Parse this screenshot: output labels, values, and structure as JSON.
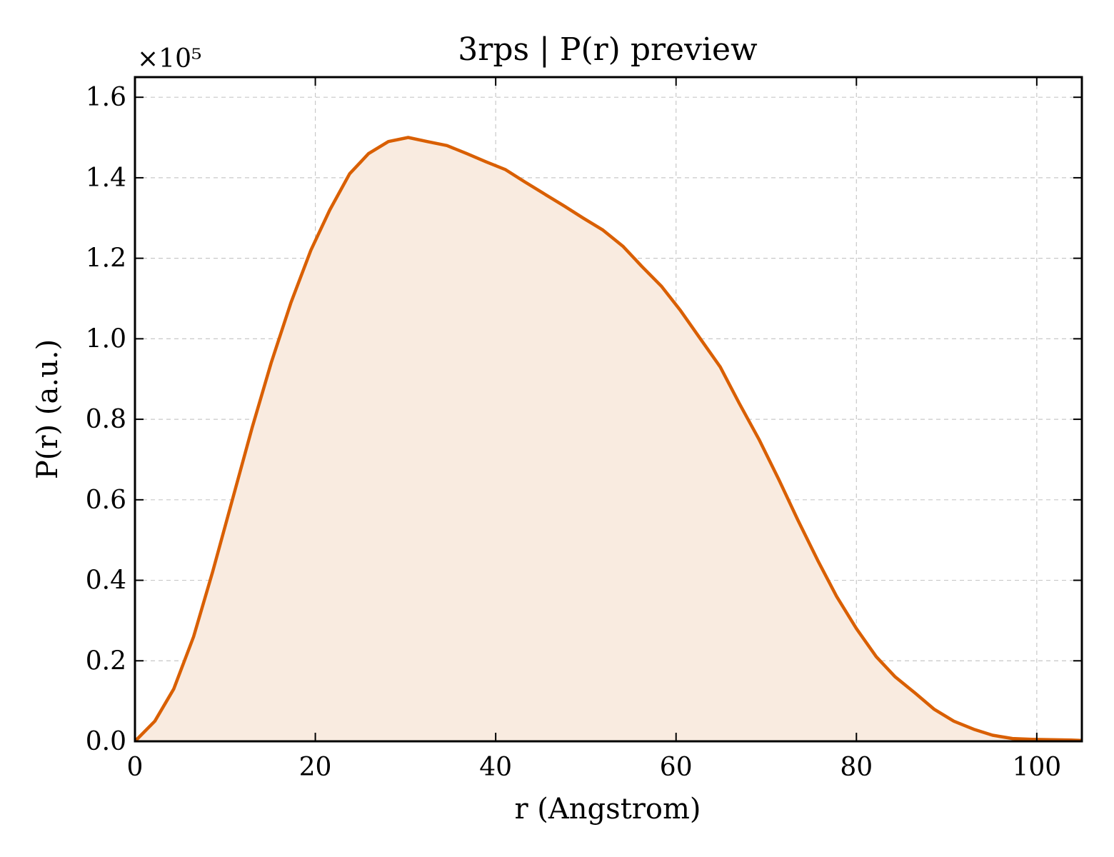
{
  "chart_data": {
    "type": "area",
    "title": "3rps | P(r) preview",
    "xlabel": "r (Angstrom)",
    "ylabel": "P(r) (a.u.)",
    "y_multiplier": "×10⁵",
    "xlim": [
      0,
      105
    ],
    "ylim": [
      0,
      1.65
    ],
    "x_ticks": [
      "0",
      "20",
      "40",
      "60",
      "80",
      "100"
    ],
    "x_tick_values": [
      0,
      20,
      40,
      60,
      80,
      100
    ],
    "y_ticks": [
      "0.0",
      "0.2",
      "0.4",
      "0.6",
      "0.8",
      "1.0",
      "1.2",
      "1.4",
      "1.6"
    ],
    "y_tick_values": [
      0,
      0.2,
      0.4,
      0.6,
      0.8,
      1.0,
      1.2,
      1.4,
      1.6
    ],
    "grid": true,
    "line_color": "#d95f02",
    "fill_color": "#f9ebe0",
    "series": [
      {
        "x": [
          0,
          2.2,
          4.3,
          6.5,
          8.6,
          10.8,
          13.0,
          15.1,
          17.3,
          19.5,
          21.6,
          23.8,
          25.9,
          28.1,
          30.3,
          32.4,
          34.6,
          36.8,
          38.9,
          41.1,
          43.2,
          45.4,
          47.6,
          49.7,
          51.9,
          54.1,
          56.2,
          58.4,
          60.5,
          62.7,
          64.9,
          67.0,
          69.2,
          71.4,
          73.5,
          75.7,
          77.8,
          80.0,
          82.2,
          84.3,
          86.5,
          88.6,
          90.8,
          93.0,
          95.1,
          97.3,
          99.5,
          101.6,
          103.8,
          105.0
        ],
        "y": [
          0.0,
          0.05,
          0.13,
          0.26,
          0.42,
          0.6,
          0.78,
          0.94,
          1.09,
          1.22,
          1.32,
          1.41,
          1.46,
          1.49,
          1.5,
          1.49,
          1.48,
          1.46,
          1.44,
          1.42,
          1.39,
          1.36,
          1.33,
          1.3,
          1.27,
          1.23,
          1.18,
          1.13,
          1.07,
          1.0,
          0.93,
          0.84,
          0.75,
          0.65,
          0.55,
          0.45,
          0.36,
          0.28,
          0.21,
          0.16,
          0.12,
          0.08,
          0.05,
          0.03,
          0.015,
          0.007,
          0.005,
          0.004,
          0.003,
          0.002
        ]
      }
    ]
  }
}
